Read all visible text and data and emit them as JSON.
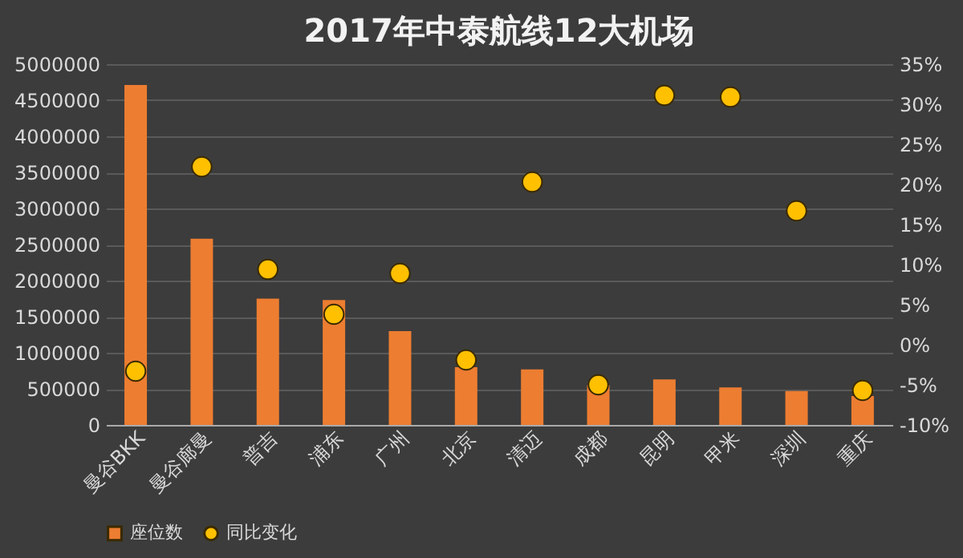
{
  "chart_data": {
    "type": "bar",
    "title": "2017年中泰航线12大机场",
    "categories": [
      "曼谷BKK",
      "曼谷廊曼",
      "普吉",
      "浦东",
      "广州",
      "北京",
      "清迈",
      "成都",
      "昆明",
      "甲米",
      "深圳",
      "重庆"
    ],
    "series": [
      {
        "name": "座位数",
        "color": "#ed7d31",
        "values": [
          4710000,
          2580000,
          1750000,
          1730000,
          1300000,
          800000,
          770000,
          550000,
          630000,
          520000,
          470000,
          400000
        ]
      },
      {
        "name": "同比变化",
        "type": "scatter",
        "axis": "y2",
        "color": "#ffc000",
        "values": [
          -3.3,
          22.2,
          9.4,
          3.8,
          8.9,
          -1.9,
          20.3,
          -5.0,
          31.1,
          30.9,
          16.7,
          -5.7
        ]
      }
    ],
    "ylim": [
      0,
      5000000
    ],
    "yticks": [
      0,
      500000,
      1000000,
      1500000,
      2000000,
      2500000,
      3000000,
      3500000,
      4000000,
      4500000,
      5000000
    ],
    "y2lim": [
      -10,
      35
    ],
    "y2ticks": [
      {
        "value": -10,
        "label": "-10%"
      },
      {
        "value": -5,
        "label": "-5%"
      },
      {
        "value": 0,
        "label": "0%"
      },
      {
        "value": 5,
        "label": "5%"
      },
      {
        "value": 10,
        "label": "10%"
      },
      {
        "value": 15,
        "label": "15%"
      },
      {
        "value": 20,
        "label": "20%"
      },
      {
        "value": 25,
        "label": "25%"
      },
      {
        "value": 30,
        "label": "30%"
      },
      {
        "value": 35,
        "label": "35%"
      }
    ],
    "grid": "y",
    "legend": "bottom",
    "marker": "circle"
  }
}
